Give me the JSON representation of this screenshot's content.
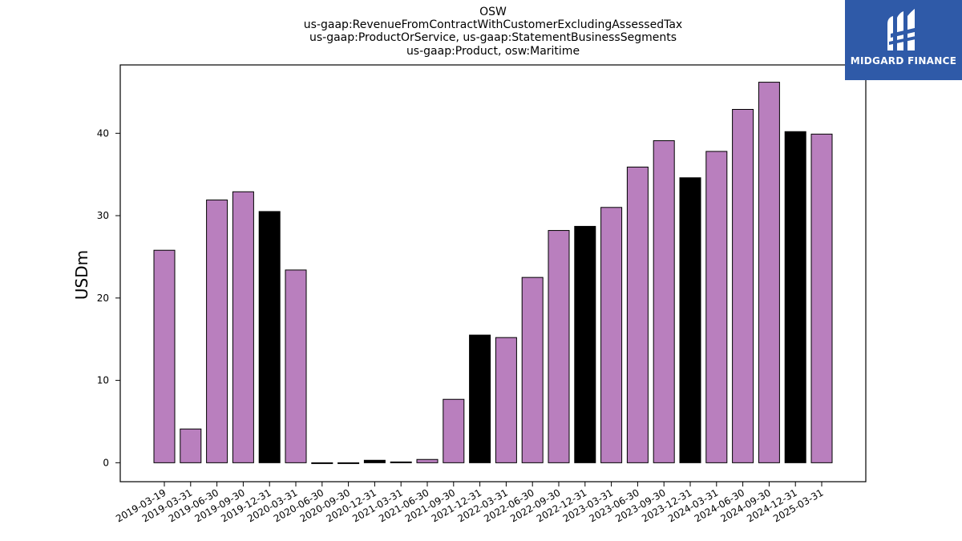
{
  "title_lines": [
    "OSW",
    "us-gaap:RevenueFromContractWithCustomerExcludingAssessedTax",
    "us-gaap:ProductOrService, us-gaap:StatementBusinessSegments",
    "us-gaap:Product, osw:Maritime"
  ],
  "logo": {
    "text": "MIDGARD FINANCE",
    "background": "#2f5aa8"
  },
  "colors": {
    "quarter_bar": "#b97fbe",
    "year_end_bar": "#000000"
  },
  "chart_data": {
    "type": "bar",
    "ylabel": "USDm",
    "xlabel": "",
    "ylim": [
      -2.3,
      48.3
    ],
    "yticks": [
      0,
      10,
      20,
      30,
      40
    ],
    "categories": [
      "2019-03-19",
      "2019-03-31",
      "2019-06-30",
      "2019-09-30",
      "2019-12-31",
      "2020-03-31",
      "2020-06-30",
      "2020-09-30",
      "2020-12-31",
      "2021-03-31",
      "2021-06-30",
      "2021-09-30",
      "2021-12-31",
      "2022-03-31",
      "2022-06-30",
      "2022-09-30",
      "2022-12-31",
      "2023-03-31",
      "2023-06-30",
      "2023-09-30",
      "2023-12-31",
      "2024-03-31",
      "2024-06-30",
      "2024-09-30",
      "2024-12-31",
      "2025-03-31"
    ],
    "values": [
      25.8,
      4.1,
      31.9,
      32.9,
      30.5,
      23.4,
      -0.1,
      -0.1,
      0.3,
      0.1,
      0.4,
      7.7,
      15.5,
      15.2,
      22.5,
      28.2,
      28.7,
      31.0,
      35.9,
      39.1,
      34.6,
      37.8,
      42.9,
      46.2,
      40.2,
      39.9
    ],
    "highlight": [
      false,
      false,
      false,
      false,
      true,
      false,
      false,
      false,
      true,
      false,
      false,
      false,
      true,
      false,
      false,
      false,
      true,
      false,
      false,
      false,
      true,
      false,
      false,
      false,
      true,
      false
    ],
    "grid": false
  }
}
